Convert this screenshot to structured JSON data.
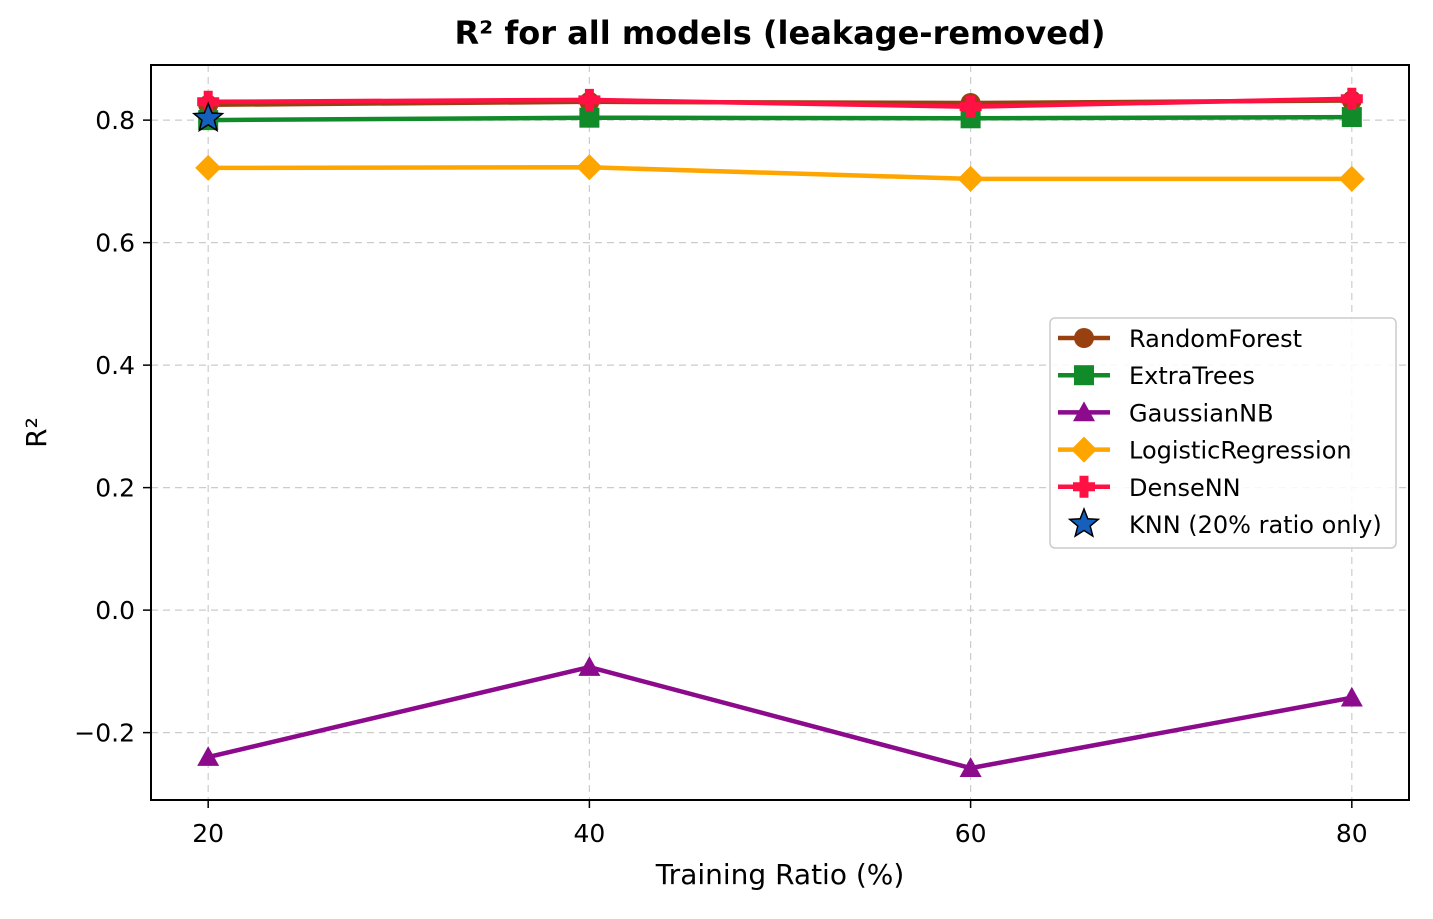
{
  "chart_data": {
    "type": "line",
    "title": "R² for all models (leakage-removed)",
    "xlabel": "Training Ratio (%)",
    "ylabel": "R²",
    "x": [
      20,
      40,
      60,
      80
    ],
    "xlim": [
      17,
      83
    ],
    "ylim": [
      -0.31,
      0.89
    ],
    "xticks": [
      20,
      40,
      60,
      80
    ],
    "yticks": [
      -0.2,
      0.0,
      0.2,
      0.4,
      0.6,
      0.8
    ],
    "ytick_labels": [
      "−0.2",
      "0.0",
      "0.2",
      "0.4",
      "0.6",
      "0.8"
    ],
    "xtick_labels": [
      "20",
      "40",
      "60",
      "80"
    ],
    "grid": true,
    "legend_position": "center-right",
    "series": [
      {
        "name": "RandomForest",
        "x": [
          20,
          40,
          60,
          80
        ],
        "values": [
          0.825,
          0.83,
          0.828,
          0.832
        ],
        "color": "#994010",
        "marker": "circle"
      },
      {
        "name": "ExtraTrees",
        "x": [
          20,
          40,
          60,
          80
        ],
        "values": [
          0.8,
          0.804,
          0.803,
          0.805
        ],
        "color": "#118a2a",
        "marker": "square"
      },
      {
        "name": "GaussianNB",
        "x": [
          20,
          40,
          60,
          80
        ],
        "values": [
          -0.24,
          -0.093,
          -0.258,
          -0.143
        ],
        "color": "#8c0a8c",
        "marker": "triangle"
      },
      {
        "name": "LogisticRegression",
        "x": [
          20,
          40,
          60,
          80
        ],
        "values": [
          0.722,
          0.723,
          0.704,
          0.704
        ],
        "color": "#ffa500",
        "marker": "diamond"
      },
      {
        "name": "DenseNN",
        "x": [
          20,
          40,
          60,
          80
        ],
        "values": [
          0.83,
          0.833,
          0.822,
          0.835
        ],
        "color": "#ff1144",
        "marker": "plus"
      },
      {
        "name": "KNN (20% ratio only)",
        "x": [
          20
        ],
        "values": [
          0.803
        ],
        "color": "#1560bd",
        "marker": "star",
        "line": false
      }
    ]
  }
}
